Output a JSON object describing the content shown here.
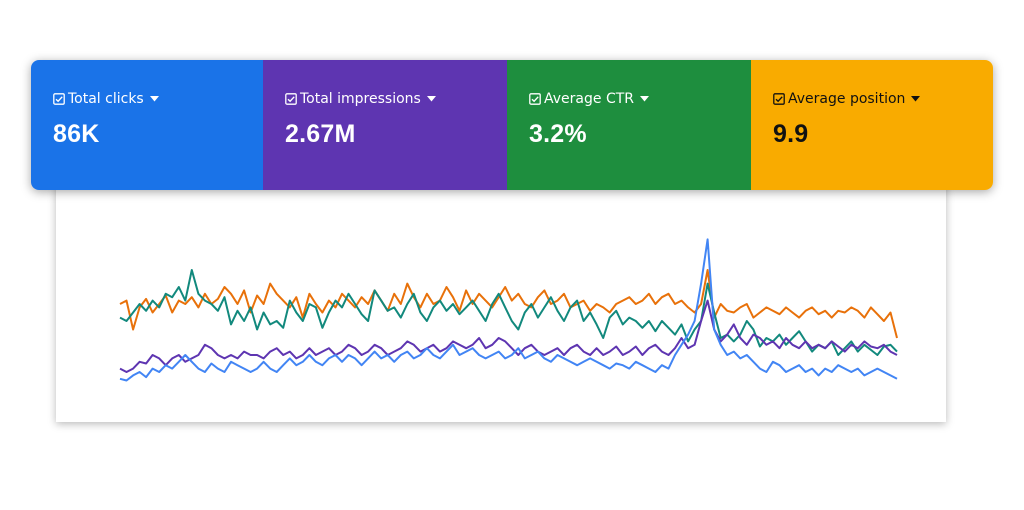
{
  "metrics": [
    {
      "label": "Total clicks",
      "value": "86K",
      "color": "#1a73e8",
      "text_color": "#ffffff",
      "checked": true
    },
    {
      "label": "Total impressions",
      "value": "2.67M",
      "color": "#5e35b1",
      "text_color": "#ffffff",
      "checked": true
    },
    {
      "label": "Average CTR",
      "value": "3.2%",
      "color": "#1e8e3e",
      "text_color": "#ffffff",
      "checked": true
    },
    {
      "label": "Average position",
      "value": "9.9",
      "color": "#f9ab00",
      "text_color": "#111111",
      "checked": true
    }
  ],
  "chart_data": {
    "type": "line",
    "grid": false,
    "x_axis_labels": false,
    "y_axis_labels": false,
    "series": [
      {
        "color": "#e8710a",
        "values": [
          0.6,
          0.62,
          0.45,
          0.58,
          0.63,
          0.55,
          0.6,
          0.65,
          0.55,
          0.62,
          0.6,
          0.64,
          0.58,
          0.66,
          0.6,
          0.63,
          0.7,
          0.66,
          0.6,
          0.68,
          0.55,
          0.65,
          0.6,
          0.72,
          0.66,
          0.62,
          0.58,
          0.64,
          0.52,
          0.66,
          0.6,
          0.55,
          0.62,
          0.58,
          0.66,
          0.62,
          0.58,
          0.64,
          0.6,
          0.68,
          0.62,
          0.56,
          0.66,
          0.6,
          0.72,
          0.64,
          0.58,
          0.66,
          0.6,
          0.62,
          0.7,
          0.64,
          0.56,
          0.68,
          0.6,
          0.66,
          0.62,
          0.58,
          0.64,
          0.7,
          0.62,
          0.66,
          0.6,
          0.58,
          0.64,
          0.68,
          0.6,
          0.62,
          0.66,
          0.58,
          0.6,
          0.62,
          0.56,
          0.6,
          0.58,
          0.55,
          0.6,
          0.62,
          0.64,
          0.6,
          0.62,
          0.66,
          0.6,
          0.64,
          0.66,
          0.6,
          0.62,
          0.58,
          0.55,
          0.6,
          0.8,
          0.52,
          0.6,
          0.56,
          0.55,
          0.58,
          0.6,
          0.52,
          0.55,
          0.58,
          0.56,
          0.54,
          0.58,
          0.55,
          0.52,
          0.56,
          0.58,
          0.54,
          0.56,
          0.52,
          0.56,
          0.55,
          0.58,
          0.56,
          0.52,
          0.58,
          0.54,
          0.5,
          0.55,
          0.4
        ]
      },
      {
        "color": "#12897d",
        "values": [
          0.52,
          0.5,
          0.55,
          0.6,
          0.56,
          0.62,
          0.58,
          0.66,
          0.64,
          0.7,
          0.62,
          0.8,
          0.66,
          0.62,
          0.6,
          0.56,
          0.64,
          0.48,
          0.56,
          0.5,
          0.58,
          0.45,
          0.55,
          0.48,
          0.5,
          0.46,
          0.62,
          0.55,
          0.5,
          0.6,
          0.58,
          0.46,
          0.55,
          0.62,
          0.58,
          0.66,
          0.6,
          0.54,
          0.5,
          0.68,
          0.62,
          0.56,
          0.58,
          0.52,
          0.6,
          0.66,
          0.55,
          0.5,
          0.58,
          0.62,
          0.56,
          0.6,
          0.54,
          0.58,
          0.62,
          0.56,
          0.5,
          0.6,
          0.66,
          0.58,
          0.5,
          0.45,
          0.55,
          0.6,
          0.52,
          0.58,
          0.64,
          0.56,
          0.5,
          0.58,
          0.62,
          0.5,
          0.55,
          0.48,
          0.4,
          0.52,
          0.56,
          0.48,
          0.52,
          0.5,
          0.46,
          0.5,
          0.44,
          0.5,
          0.46,
          0.42,
          0.48,
          0.38,
          0.45,
          0.5,
          0.72,
          0.55,
          0.4,
          0.42,
          0.38,
          0.42,
          0.5,
          0.45,
          0.35,
          0.4,
          0.38,
          0.42,
          0.36,
          0.4,
          0.44,
          0.38,
          0.32,
          0.36,
          0.34,
          0.38,
          0.3,
          0.34,
          0.38,
          0.32,
          0.36,
          0.33,
          0.3,
          0.35,
          0.36,
          0.32
        ]
      },
      {
        "color": "#5e35b1",
        "values": [
          0.22,
          0.2,
          0.22,
          0.26,
          0.25,
          0.3,
          0.28,
          0.24,
          0.28,
          0.3,
          0.26,
          0.28,
          0.3,
          0.36,
          0.34,
          0.3,
          0.28,
          0.3,
          0.28,
          0.32,
          0.3,
          0.3,
          0.28,
          0.32,
          0.34,
          0.3,
          0.32,
          0.28,
          0.3,
          0.34,
          0.3,
          0.32,
          0.34,
          0.3,
          0.32,
          0.36,
          0.34,
          0.3,
          0.32,
          0.36,
          0.34,
          0.3,
          0.32,
          0.34,
          0.38,
          0.36,
          0.32,
          0.34,
          0.36,
          0.32,
          0.34,
          0.38,
          0.36,
          0.34,
          0.36,
          0.4,
          0.34,
          0.36,
          0.4,
          0.38,
          0.34,
          0.3,
          0.34,
          0.36,
          0.32,
          0.3,
          0.32,
          0.34,
          0.3,
          0.34,
          0.36,
          0.32,
          0.3,
          0.34,
          0.3,
          0.32,
          0.35,
          0.3,
          0.32,
          0.35,
          0.3,
          0.34,
          0.36,
          0.32,
          0.3,
          0.34,
          0.4,
          0.34,
          0.36,
          0.5,
          0.62,
          0.45,
          0.38,
          0.42,
          0.48,
          0.4,
          0.36,
          0.42,
          0.4,
          0.36,
          0.38,
          0.34,
          0.4,
          0.36,
          0.34,
          0.38,
          0.34,
          0.36,
          0.34,
          0.38,
          0.35,
          0.32,
          0.36,
          0.34,
          0.38,
          0.35,
          0.34,
          0.36,
          0.32,
          0.3
        ]
      },
      {
        "color": "#4285f4",
        "values": [
          0.16,
          0.15,
          0.18,
          0.2,
          0.17,
          0.22,
          0.2,
          0.24,
          0.22,
          0.26,
          0.3,
          0.26,
          0.22,
          0.2,
          0.25,
          0.22,
          0.2,
          0.26,
          0.24,
          0.22,
          0.2,
          0.22,
          0.26,
          0.22,
          0.2,
          0.24,
          0.28,
          0.24,
          0.26,
          0.3,
          0.26,
          0.24,
          0.28,
          0.3,
          0.26,
          0.3,
          0.28,
          0.24,
          0.28,
          0.32,
          0.28,
          0.3,
          0.26,
          0.3,
          0.32,
          0.28,
          0.3,
          0.34,
          0.3,
          0.28,
          0.32,
          0.36,
          0.3,
          0.32,
          0.34,
          0.3,
          0.28,
          0.3,
          0.32,
          0.28,
          0.3,
          0.34,
          0.28,
          0.3,
          0.32,
          0.28,
          0.26,
          0.3,
          0.28,
          0.26,
          0.24,
          0.26,
          0.28,
          0.26,
          0.24,
          0.22,
          0.25,
          0.24,
          0.22,
          0.26,
          0.24,
          0.22,
          0.2,
          0.24,
          0.22,
          0.3,
          0.36,
          0.42,
          0.5,
          0.72,
          0.98,
          0.45,
          0.36,
          0.3,
          0.32,
          0.28,
          0.3,
          0.26,
          0.22,
          0.2,
          0.26,
          0.24,
          0.2,
          0.22,
          0.24,
          0.2,
          0.22,
          0.18,
          0.22,
          0.2,
          0.24,
          0.22,
          0.2,
          0.22,
          0.18,
          0.2,
          0.22,
          0.2,
          0.18,
          0.16
        ]
      }
    ]
  }
}
